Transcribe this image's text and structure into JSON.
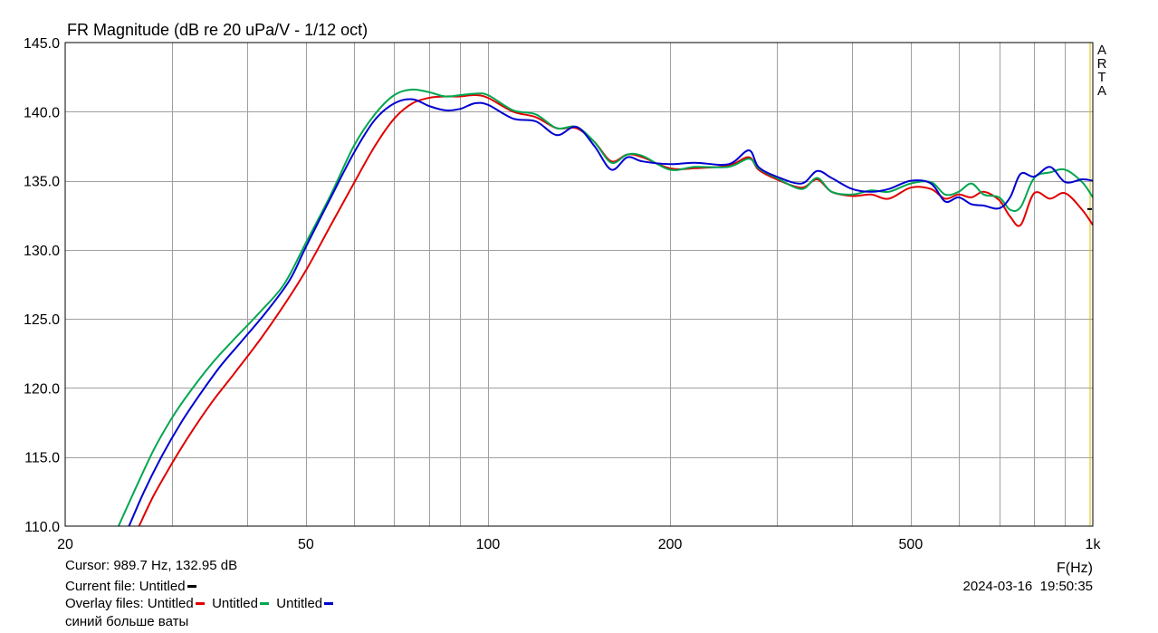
{
  "chart_data": {
    "type": "line",
    "title": "FR Magnitude (dB re 20 uPa/V - 1/12 oct)",
    "xlabel": "F(Hz)",
    "ylabel": "",
    "x_scale": "log",
    "xlim": [
      20,
      1000
    ],
    "ylim": [
      110,
      145
    ],
    "x_ticks": [
      20,
      50,
      100,
      200,
      500,
      1000
    ],
    "x_tick_labels": [
      "20",
      "50",
      "100",
      "200",
      "500",
      "1k"
    ],
    "y_ticks": [
      110,
      115,
      120,
      125,
      130,
      135,
      140,
      145
    ],
    "y_tick_labels": [
      "110.0",
      "115.0",
      "120.0",
      "125.0",
      "130.0",
      "135.0",
      "140.0",
      "145.0"
    ],
    "grid": true,
    "series": [
      {
        "name": "Untitled",
        "color": "#e00000",
        "x": [
          26.5,
          28,
          30,
          32,
          35,
          38,
          42,
          46,
          50,
          55,
          60,
          65,
          70,
          75,
          80,
          85,
          90,
          95,
          100,
          110,
          120,
          130,
          140,
          150,
          160,
          170,
          180,
          200,
          220,
          250,
          270,
          280,
          300,
          330,
          350,
          370,
          400,
          430,
          460,
          500,
          540,
          570,
          600,
          630,
          660,
          700,
          730,
          760,
          800,
          850,
          900,
          960,
          1000
        ],
        "y": [
          110.0,
          112.2,
          114.5,
          116.5,
          119.0,
          121.0,
          123.5,
          126.0,
          128.5,
          131.8,
          134.8,
          137.5,
          139.5,
          140.6,
          141.0,
          141.1,
          141.1,
          141.2,
          141.0,
          140.0,
          139.6,
          138.8,
          138.8,
          137.8,
          136.4,
          136.9,
          136.7,
          135.9,
          135.9,
          136.1,
          136.7,
          135.8,
          135.1,
          134.5,
          135.1,
          134.2,
          133.9,
          134.0,
          133.7,
          134.5,
          134.4,
          133.7,
          134.0,
          133.8,
          134.2,
          133.6,
          132.4,
          131.8,
          134.1,
          133.7,
          134.1,
          132.9,
          131.8
        ]
      },
      {
        "name": "Untitled",
        "color": "#00a651",
        "x": [
          24.5,
          26,
          28,
          30,
          32,
          35,
          38,
          42,
          46,
          50,
          55,
          60,
          65,
          70,
          75,
          80,
          85,
          90,
          95,
          100,
          110,
          120,
          130,
          140,
          150,
          160,
          170,
          180,
          200,
          220,
          250,
          270,
          280,
          300,
          330,
          350,
          370,
          400,
          430,
          460,
          500,
          540,
          570,
          600,
          630,
          660,
          700,
          730,
          760,
          800,
          850,
          900,
          960,
          1000
        ],
        "y": [
          110.0,
          112.5,
          115.5,
          117.8,
          119.6,
          121.8,
          123.5,
          125.5,
          127.5,
          130.5,
          134.0,
          137.5,
          139.8,
          141.2,
          141.6,
          141.4,
          141.1,
          141.2,
          141.3,
          141.2,
          140.1,
          139.8,
          138.8,
          138.9,
          137.8,
          136.3,
          136.9,
          136.8,
          135.8,
          136.0,
          136.0,
          136.6,
          135.9,
          135.2,
          134.4,
          135.2,
          134.2,
          134.0,
          134.3,
          134.2,
          134.8,
          134.9,
          134.0,
          134.2,
          134.8,
          134.0,
          133.8,
          132.9,
          133.1,
          135.2,
          135.6,
          135.8,
          134.9,
          133.8
        ]
      },
      {
        "name": "Untitled",
        "color": "#0000d0",
        "x": [
          25.5,
          27,
          29,
          31,
          33,
          36,
          39,
          43,
          47,
          50,
          55,
          60,
          65,
          70,
          75,
          80,
          85,
          90,
          95,
          100,
          110,
          120,
          130,
          140,
          150,
          160,
          170,
          180,
          200,
          220,
          250,
          270,
          280,
          300,
          330,
          350,
          370,
          400,
          430,
          460,
          500,
          540,
          570,
          600,
          630,
          660,
          700,
          730,
          760,
          800,
          850,
          900,
          960,
          1000
        ],
        "y": [
          110.0,
          112.5,
          115.2,
          117.4,
          119.2,
          121.5,
          123.3,
          125.5,
          127.8,
          130.2,
          133.8,
          137.0,
          139.4,
          140.6,
          140.9,
          140.4,
          140.1,
          140.2,
          140.6,
          140.5,
          139.5,
          139.3,
          138.3,
          138.9,
          137.5,
          135.8,
          136.7,
          136.4,
          136.2,
          136.3,
          136.2,
          137.2,
          136.0,
          135.3,
          134.8,
          135.7,
          135.2,
          134.4,
          134.2,
          134.4,
          135.0,
          134.8,
          133.5,
          133.8,
          133.3,
          133.2,
          133.0,
          133.8,
          135.5,
          135.3,
          136.0,
          134.9,
          135.1,
          135.0
        ]
      }
    ]
  },
  "brand_letters": [
    "A",
    "R",
    "T",
    "A"
  ],
  "info": {
    "cursor": "Cursor: 989.7 Hz, 132.95 dB",
    "current_file_label": "Current file: Untitled",
    "overlay_label": "Overlay files: Untitled",
    "overlay_2": "Untitled",
    "overlay_3": "Untitled",
    "note": "синий больше ваты",
    "date": "2024-03-16",
    "time": "19:50:35"
  },
  "colors": {
    "grid": "#a0a0a0",
    "plot_border": "#000000",
    "cursor_line": "#d4c000",
    "current_file": "#000000"
  }
}
